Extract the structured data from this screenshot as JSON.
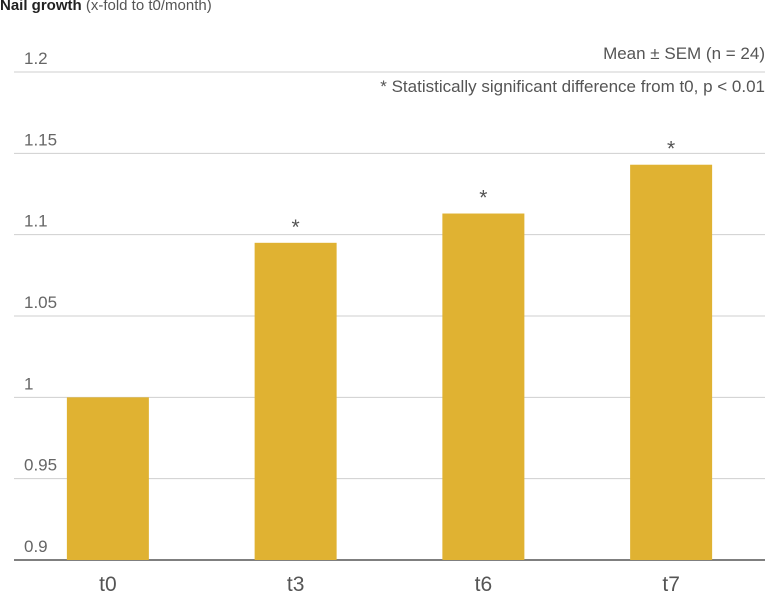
{
  "chart_data": {
    "type": "bar",
    "title": "Nail growth",
    "ylabel": "(x-fold to t0/month)",
    "categories": [
      "t0",
      "t3",
      "t6",
      "t7"
    ],
    "values": [
      1.0,
      1.095,
      1.113,
      1.143
    ],
    "significant": [
      false,
      true,
      true,
      true
    ],
    "significance_marker": "*",
    "ylim": [
      0.9,
      1.2
    ],
    "yticks": [
      "0.9",
      "0.95",
      "1",
      "1.05",
      "1.1",
      "1.15",
      "1.2"
    ],
    "grid": true,
    "bar_color": "#E0B232",
    "notes": [
      "Mean ± SEM (n = 24)",
      "* Statistically significant difference from t0, p < 0.01"
    ]
  }
}
